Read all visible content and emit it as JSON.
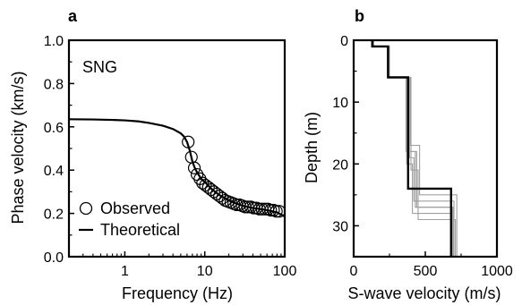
{
  "chart_data": [
    {
      "panel": "a",
      "type": "line",
      "annotation": "SNG",
      "xlabel": "Frequency (Hz)",
      "ylabel": "Phase velocity (km/s)",
      "xscale": "log",
      "xlim": [
        0.2,
        100
      ],
      "ylim": [
        0.0,
        1.0
      ],
      "xticks": [
        1,
        10,
        100
      ],
      "xtick_labels": [
        "1",
        "10",
        "100"
      ],
      "yticks": [
        0.0,
        0.2,
        0.4,
        0.6,
        0.8,
        1.0
      ],
      "ytick_labels": [
        "0.0",
        "0.2",
        "0.4",
        "0.6",
        "0.8",
        "1.0"
      ],
      "legend_position": "bottom-left",
      "series": [
        {
          "name": "Observed",
          "style": "open-circle",
          "x": [
            6.2,
            6.8,
            7.4,
            8.0,
            8.7,
            9.4,
            10.2,
            11.1,
            12.0,
            13.0,
            14.1,
            15.3,
            16.6,
            18.0,
            19.5,
            21.2,
            23.0,
            25.0,
            27.1,
            29.4,
            31.9,
            34.6,
            37.6,
            40.8,
            44.3,
            48.1,
            52.2,
            56.6,
            61.5,
            66.7,
            72.4,
            78.6,
            85.3
          ],
          "y": [
            0.53,
            0.46,
            0.41,
            0.38,
            0.36,
            0.34,
            0.33,
            0.32,
            0.31,
            0.3,
            0.29,
            0.28,
            0.27,
            0.26,
            0.255,
            0.25,
            0.245,
            0.24,
            0.24,
            0.235,
            0.23,
            0.23,
            0.23,
            0.225,
            0.225,
            0.22,
            0.22,
            0.22,
            0.22,
            0.215,
            0.215,
            0.21,
            0.21
          ]
        },
        {
          "name": "Theoretical",
          "style": "line",
          "x": [
            0.2,
            0.4,
            0.7,
            1,
            1.5,
            2,
            3,
            4,
            5,
            5.5,
            6,
            6.5,
            7,
            7.5,
            8,
            9,
            10,
            11,
            12,
            14,
            16,
            18,
            20,
            25,
            30,
            40,
            50,
            60,
            70,
            80,
            90,
            100
          ],
          "y": [
            0.635,
            0.634,
            0.632,
            0.63,
            0.625,
            0.618,
            0.605,
            0.59,
            0.57,
            0.555,
            0.53,
            0.49,
            0.44,
            0.41,
            0.39,
            0.36,
            0.345,
            0.33,
            0.315,
            0.295,
            0.28,
            0.27,
            0.26,
            0.245,
            0.235,
            0.225,
            0.22,
            0.215,
            0.21,
            0.205,
            0.195,
            0.185
          ]
        }
      ]
    },
    {
      "panel": "b",
      "type": "line",
      "xlabel": "S-wave velocity (m/s)",
      "ylabel": "Depth (m)",
      "xlim": [
        0,
        1000
      ],
      "ylim": [
        0,
        35
      ],
      "y_inverted": true,
      "xticks": [
        0,
        500,
        1000
      ],
      "xtick_labels": [
        "0",
        "500",
        "1000"
      ],
      "yticks": [
        0,
        10,
        20,
        30
      ],
      "ytick_labels": [
        "0",
        "10",
        "20",
        "30"
      ],
      "best_model": {
        "color": "#000000",
        "layers": [
          {
            "top": 0,
            "bottom": 1,
            "vs": 130
          },
          {
            "top": 1,
            "bottom": 6,
            "vs": 240
          },
          {
            "top": 6,
            "bottom": 24,
            "vs": 380
          },
          {
            "top": 24,
            "bottom": 35,
            "vs": 680
          }
        ]
      },
      "candidate_models": {
        "color": "#a0a0a0",
        "models": [
          [
            {
              "top": 0,
              "bottom": 1,
              "vs": 135
            },
            {
              "top": 1,
              "bottom": 6,
              "vs": 245
            },
            {
              "top": 6,
              "bottom": 18,
              "vs": 365
            },
            {
              "top": 18,
              "bottom": 27,
              "vs": 440
            },
            {
              "top": 27,
              "bottom": 35,
              "vs": 690
            }
          ],
          [
            {
              "top": 0,
              "bottom": 1,
              "vs": 130
            },
            {
              "top": 1,
              "bottom": 6,
              "vs": 240
            },
            {
              "top": 6,
              "bottom": 19,
              "vs": 390
            },
            {
              "top": 19,
              "bottom": 26,
              "vs": 420
            },
            {
              "top": 26,
              "bottom": 35,
              "vs": 700
            }
          ],
          [
            {
              "top": 0,
              "bottom": 1,
              "vs": 140
            },
            {
              "top": 1,
              "bottom": 6,
              "vs": 250
            },
            {
              "top": 6,
              "bottom": 17,
              "vs": 395
            },
            {
              "top": 17,
              "bottom": 25,
              "vs": 460
            },
            {
              "top": 25,
              "bottom": 35,
              "vs": 720
            }
          ],
          [
            {
              "top": 0,
              "bottom": 1,
              "vs": 125
            },
            {
              "top": 1,
              "bottom": 6,
              "vs": 235
            },
            {
              "top": 6,
              "bottom": 20,
              "vs": 370
            },
            {
              "top": 20,
              "bottom": 28,
              "vs": 410
            },
            {
              "top": 28,
              "bottom": 35,
              "vs": 680
            }
          ],
          [
            {
              "top": 0,
              "bottom": 1,
              "vs": 135
            },
            {
              "top": 1,
              "bottom": 6,
              "vs": 245
            },
            {
              "top": 6,
              "bottom": 21,
              "vs": 400
            },
            {
              "top": 21,
              "bottom": 29,
              "vs": 450
            },
            {
              "top": 29,
              "bottom": 35,
              "vs": 710
            }
          ],
          [
            {
              "top": 0,
              "bottom": 1,
              "vs": 130
            },
            {
              "top": 1,
              "bottom": 6,
              "vs": 240
            },
            {
              "top": 6,
              "bottom": 18,
              "vs": 385
            },
            {
              "top": 18,
              "bottom": 27,
              "vs": 430
            },
            {
              "top": 27,
              "bottom": 35,
              "vs": 695
            }
          ]
        ]
      }
    }
  ]
}
